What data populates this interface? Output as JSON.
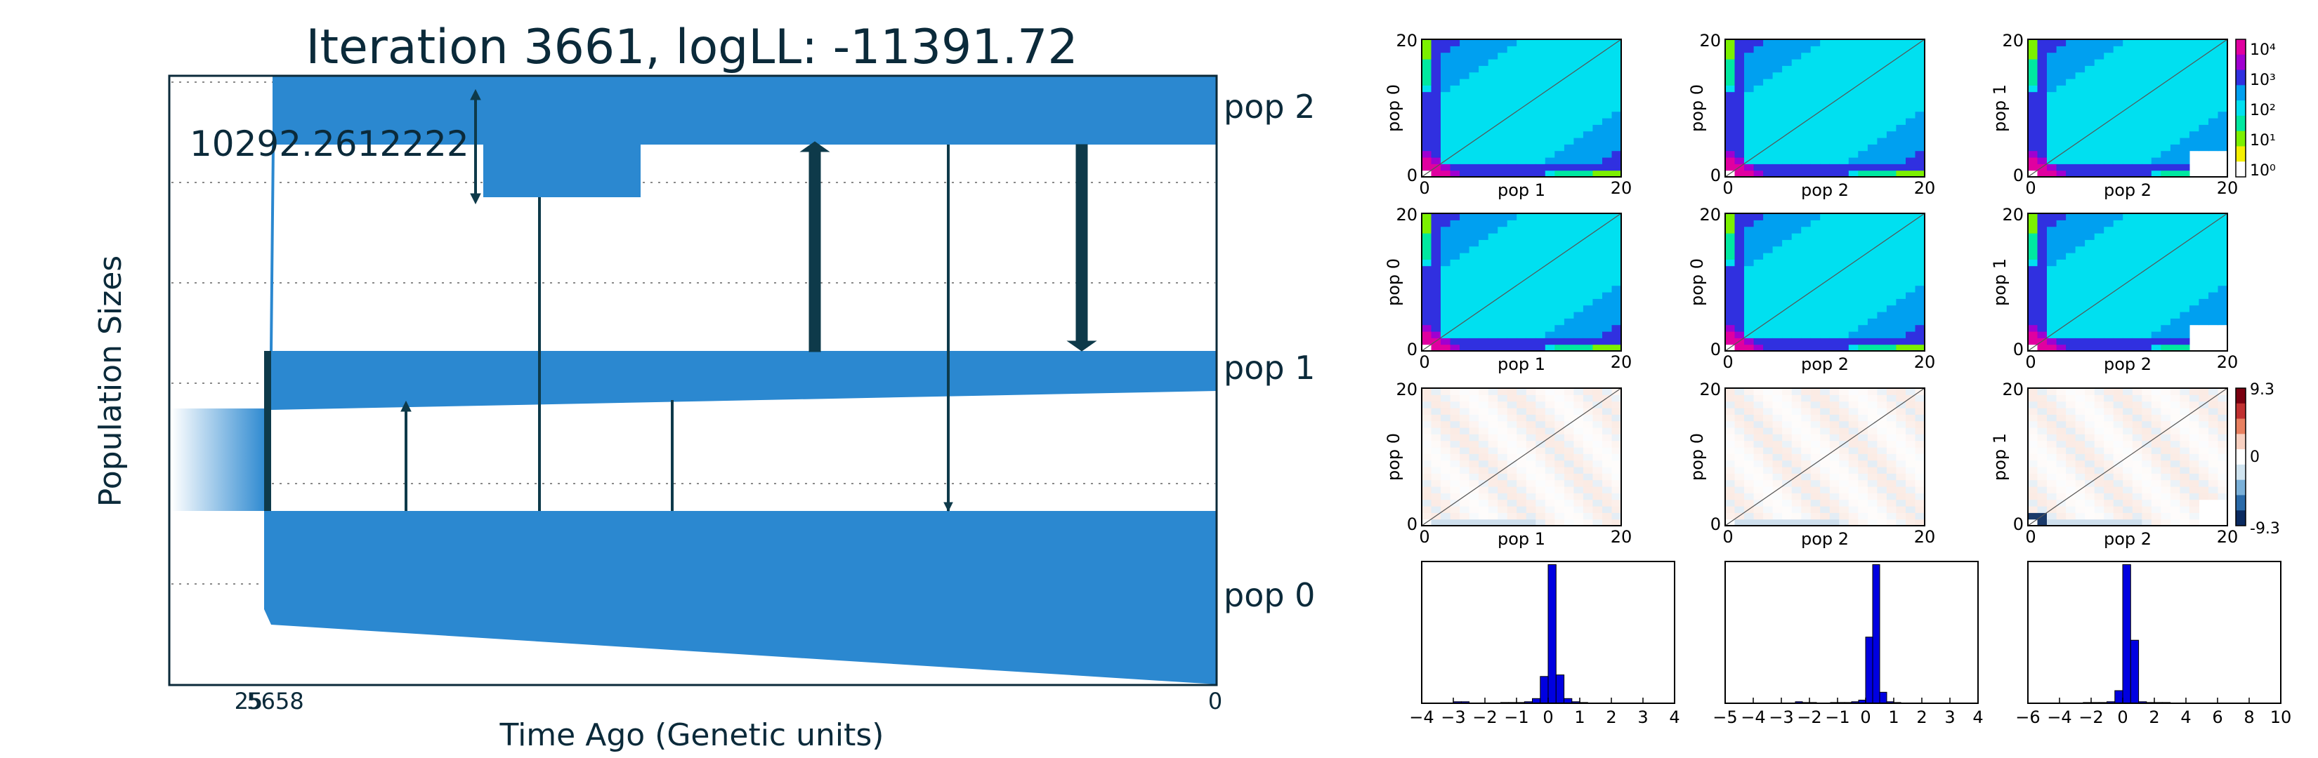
{
  "title": "Iteration 3661, logLL:  -11391.72",
  "colors": {
    "pop_fill": "#2b88d0",
    "arrow": "#0e3a4a",
    "text": "#0b2a3a",
    "sfs_palette": [
      "#ffffff",
      "#f5f000",
      "#7cf000",
      "#00e8a0",
      "#00e0f0",
      "#00a0f0",
      "#3030e0",
      "#a000d0",
      "#e000a0"
    ],
    "resid_pos": "#e07040",
    "resid_neg": "#3a7fb8",
    "hist_bar": "#0000e0"
  },
  "demography": {
    "ylabel": "Population Sizes",
    "xlabel": "Time Ago (Genetic units)",
    "size_label": "10292.2612222",
    "pop_labels": [
      "pop 2",
      "pop 1",
      "pop 0"
    ],
    "xtick_left": "25",
    "xtick_mid": "5658",
    "xtick_right": "0"
  },
  "sfs_panels": [
    {
      "row": 0,
      "col": 0,
      "ylabel": "pop 0",
      "xlabel": "pop 1"
    },
    {
      "row": 0,
      "col": 1,
      "ylabel": "pop 0",
      "xlabel": "pop 2"
    },
    {
      "row": 0,
      "col": 2,
      "ylabel": "pop 1",
      "xlabel": "pop 2"
    },
    {
      "row": 1,
      "col": 0,
      "ylabel": "pop 0",
      "xlabel": "pop 1"
    },
    {
      "row": 1,
      "col": 1,
      "ylabel": "pop 0",
      "xlabel": "pop 2"
    },
    {
      "row": 1,
      "col": 2,
      "ylabel": "pop 1",
      "xlabel": "pop 2"
    },
    {
      "row": 2,
      "col": 0,
      "ylabel": "pop 0",
      "xlabel": "pop 1"
    },
    {
      "row": 2,
      "col": 1,
      "ylabel": "pop 0",
      "xlabel": "pop 2"
    },
    {
      "row": 2,
      "col": 2,
      "ylabel": "pop 1",
      "xlabel": "pop 2"
    }
  ],
  "sfs_ticks": {
    "min": "0",
    "max": "20"
  },
  "colorbar_log_labels": [
    "10⁴",
    "10³",
    "10²",
    "10¹",
    "10⁰"
  ],
  "colorbar_resid_labels": [
    "9.3",
    "0",
    "-9.3"
  ],
  "chart_data": [
    {
      "type": "histogram",
      "xlim": [
        -4,
        4
      ],
      "xticks": [
        "−4",
        "−3",
        "−2",
        "−1",
        "0",
        "1",
        "2",
        "3",
        "4"
      ],
      "bins": [
        -3.0,
        -2.75,
        -2.5,
        -2.25,
        -2.0,
        -1.75,
        -1.5,
        -1.25,
        -1.0,
        -0.75,
        -0.5,
        -0.25,
        0.0,
        0.25,
        0.5,
        0.75,
        1.0
      ],
      "counts": [
        1,
        1,
        0,
        0,
        0,
        0,
        0.5,
        0.5,
        0.5,
        1,
        3,
        17,
        88,
        18,
        3,
        1,
        0.5
      ]
    },
    {
      "type": "histogram",
      "xlim": [
        -5,
        4
      ],
      "xticks": [
        "−5",
        "−4",
        "−3",
        "−2",
        "−1",
        "0",
        "1",
        "2",
        "3",
        "4"
      ],
      "bins": [
        -2.5,
        -2.25,
        -2.0,
        -1.75,
        -1.5,
        -1.25,
        -1.0,
        -0.75,
        -0.5,
        -0.25,
        0.0,
        0.25,
        0.5,
        0.75,
        1.0
      ],
      "counts": [
        1,
        0.5,
        0.5,
        0,
        0,
        0.5,
        0.5,
        0.5,
        1,
        2,
        42,
        88,
        7,
        1,
        0.5
      ]
    },
    {
      "type": "histogram",
      "xlim": [
        -6,
        10
      ],
      "xticks": [
        "−6",
        "−4",
        "−2",
        "0",
        "2",
        "4",
        "6",
        "8",
        "10"
      ],
      "bins": [
        -2.5,
        -2.0,
        -1.5,
        -1.0,
        -0.5,
        0.0,
        0.5,
        1.0,
        1.5,
        2.0,
        2.5
      ],
      "counts": [
        0.5,
        0.5,
        0.5,
        1,
        8,
        88,
        40,
        1,
        0.5,
        0.5,
        0.5
      ]
    }
  ]
}
